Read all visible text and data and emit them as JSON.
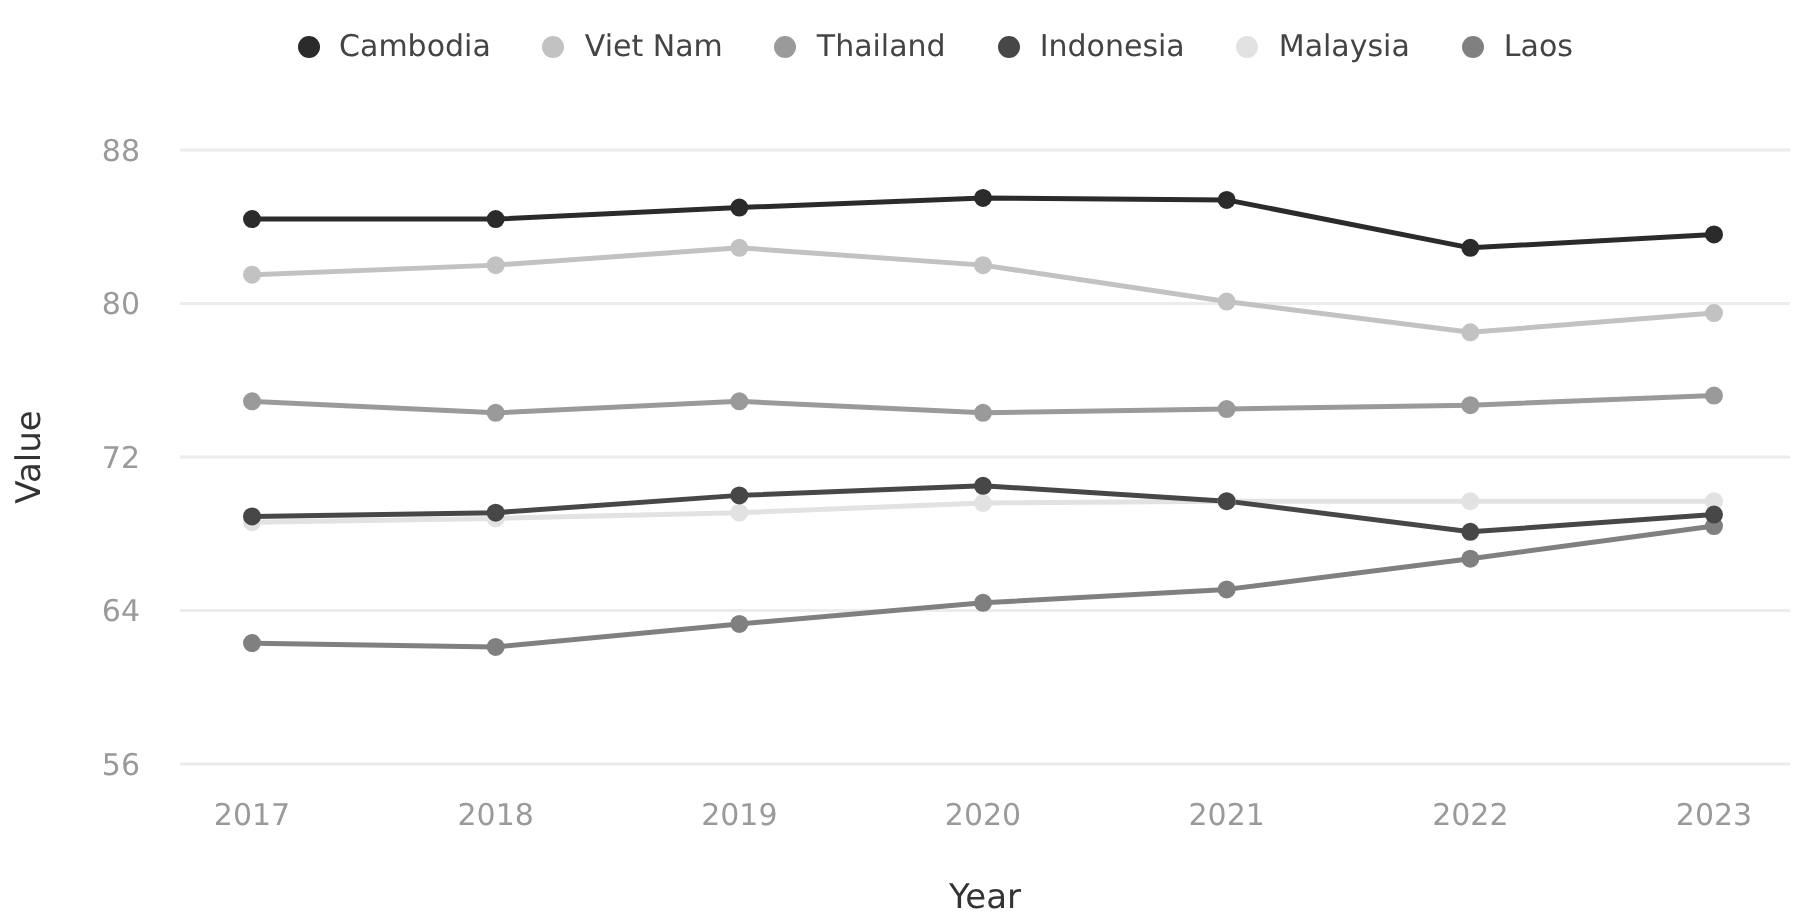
{
  "chart_data": {
    "type": "line",
    "xlabel": "Year",
    "ylabel": "Value",
    "categories": [
      "2017",
      "2018",
      "2019",
      "2020",
      "2021",
      "2022",
      "2023"
    ],
    "series": [
      {
        "name": "Cambodia",
        "color": "#2b2b2b",
        "values": [
          84.4,
          84.4,
          85.0,
          85.5,
          85.4,
          82.9,
          83.6
        ]
      },
      {
        "name": "Viet Nam",
        "color": "#c2c2c2",
        "values": [
          81.5,
          82.0,
          82.9,
          82.0,
          80.1,
          78.5,
          79.5
        ]
      },
      {
        "name": "Thailand",
        "color": "#9a9a9a",
        "values": [
          74.9,
          74.3,
          74.9,
          74.3,
          74.5,
          74.7,
          75.2
        ]
      },
      {
        "name": "Indonesia",
        "color": "#474747",
        "values": [
          68.9,
          69.1,
          70.0,
          70.5,
          69.7,
          68.1,
          69.0
        ]
      },
      {
        "name": "Malaysia",
        "color": "#e2e2e2",
        "values": [
          68.6,
          68.8,
          69.1,
          69.6,
          69.7,
          69.7,
          69.7
        ]
      },
      {
        "name": "Laos",
        "color": "#808080",
        "values": [
          62.3,
          62.1,
          63.3,
          64.4,
          65.1,
          66.7,
          68.4
        ]
      }
    ],
    "ylim": [
      56,
      88
    ],
    "yticks": [
      56,
      64,
      72,
      80,
      88
    ],
    "grid": "y",
    "legend": "top",
    "marker": "circle",
    "line_style": "solid"
  }
}
